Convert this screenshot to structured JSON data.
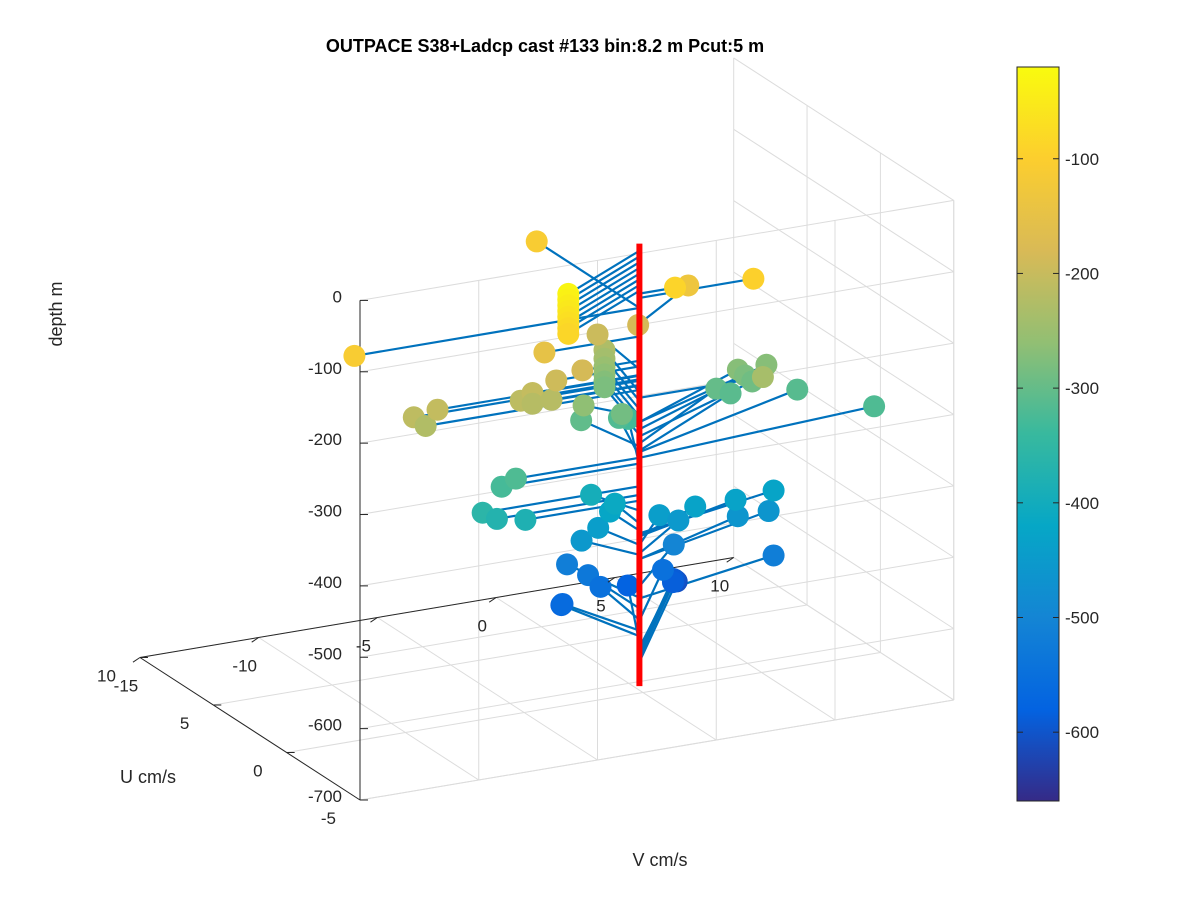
{
  "chart_data": {
    "type": "scatter",
    "title": "OUTPACE S38+Ladcp cast #133 bin:8.2 m  Pcut:5 m",
    "xlabel": "V cm/s",
    "ylabel": "U cm/s",
    "zlabel": "depth m",
    "xlim": [
      -15,
      10
    ],
    "ylim": [
      -5,
      10
    ],
    "zlim": [
      -700,
      0
    ],
    "xticks": [
      "-15",
      "-10",
      "-5",
      "0",
      "5",
      "10"
    ],
    "yticks": [
      "-5",
      "0",
      "5",
      "10"
    ],
    "zticks": [
      "0",
      "-100",
      "-200",
      "-300",
      "-400",
      "-500",
      "-600",
      "-700"
    ],
    "grid": true,
    "colorbar": {
      "ticks": [
        "-100",
        "-200",
        "-300",
        "-400",
        "-500",
        "-600"
      ],
      "range": [
        -660,
        -20
      ],
      "colormap": "parula"
    },
    "stick_origin": {
      "v": -2,
      "u": -3
    },
    "stick_color": "#0072BD",
    "axis_line_color": "#ff0000",
    "points": [
      {
        "v": -6.6,
        "u": -5.6,
        "d": -30
      },
      {
        "v": -6.6,
        "u": -5.6,
        "d": -38
      },
      {
        "v": -6.6,
        "u": -5.6,
        "d": -46
      },
      {
        "v": -6.6,
        "u": -5.6,
        "d": -54
      },
      {
        "v": -6.6,
        "u": -5.6,
        "d": -62
      },
      {
        "v": -6.6,
        "u": -5.6,
        "d": -70
      },
      {
        "v": -6.6,
        "u": -5.6,
        "d": -78
      },
      {
        "v": -6.6,
        "u": -5.6,
        "d": -86
      },
      {
        "v": -14.0,
        "u": -3.0,
        "d": -110
      },
      {
        "v": -0.5,
        "u": -3.0,
        "d": -90
      },
      {
        "v": -2.0,
        "u": 4.0,
        "d": -110
      },
      {
        "v": 2.8,
        "u": -3.0,
        "d": -96
      },
      {
        "v": 1.6,
        "u": -0.5,
        "d": -132
      },
      {
        "v": -6.0,
        "u": -3.0,
        "d": -150
      },
      {
        "v": -11.5,
        "u": -3.0,
        "d": -210
      },
      {
        "v": -10.5,
        "u": -3.0,
        "d": -205
      },
      {
        "v": -11.0,
        "u": -3.0,
        "d": -225
      },
      {
        "v": -6.5,
        "u": -3.0,
        "d": -204
      },
      {
        "v": -7.0,
        "u": -3.0,
        "d": -212
      },
      {
        "v": -6.5,
        "u": -3.0,
        "d": -219
      },
      {
        "v": -5.7,
        "u": -3.0,
        "d": -218
      },
      {
        "v": -5.5,
        "u": -3.0,
        "d": -192
      },
      {
        "v": -4.4,
        "u": -3.0,
        "d": -184
      },
      {
        "v": -1.6,
        "u": 0.5,
        "d": -196
      },
      {
        "v": -0.2,
        "u": 0.0,
        "d": -184
      },
      {
        "v": -1.0,
        "u": 1.0,
        "d": -228
      },
      {
        "v": -1.0,
        "u": 1.0,
        "d": -240
      },
      {
        "v": -1.0,
        "u": 1.0,
        "d": -252
      },
      {
        "v": -1.0,
        "u": 1.0,
        "d": -262
      },
      {
        "v": -1.0,
        "u": 1.0,
        "d": -272
      },
      {
        "v": -1.0,
        "u": 1.0,
        "d": -280
      },
      {
        "v": -3.3,
        "u": -1.3,
        "d": -262
      },
      {
        "v": -1.5,
        "u": -1.0,
        "d": -288
      },
      {
        "v": -2.6,
        "u": 0.0,
        "d": -304
      },
      {
        "v": -0.7,
        "u": 0.5,
        "d": -318
      },
      {
        "v": 3.2,
        "u": -3.0,
        "d": -236
      },
      {
        "v": 4.0,
        "u": 0.0,
        "d": -270
      },
      {
        "v": 4.3,
        "u": 0.0,
        "d": -280
      },
      {
        "v": 4.6,
        "u": 0.0,
        "d": -290
      },
      {
        "v": 5.2,
        "u": 0.0,
        "d": -270
      },
      {
        "v": 3.4,
        "u": 0.5,
        "d": -300
      },
      {
        "v": 4.0,
        "u": 0.5,
        "d": -310
      },
      {
        "v": 6.5,
        "u": 0.0,
        "d": -312
      },
      {
        "v": 8.5,
        "u": -2.0,
        "d": -320
      },
      {
        "v": 0.0,
        "u": 1.0,
        "d": -330
      },
      {
        "v": -7.8,
        "u": -3.0,
        "d": -328
      },
      {
        "v": -7.2,
        "u": -3.0,
        "d": -320
      },
      {
        "v": -8.6,
        "u": -3.0,
        "d": -360
      },
      {
        "v": -8.0,
        "u": -3.0,
        "d": -372
      },
      {
        "v": -6.8,
        "u": -3.0,
        "d": -380
      },
      {
        "v": -2.8,
        "u": -1.0,
        "d": -394
      },
      {
        "v": -1.8,
        "u": -1.0,
        "d": -412
      },
      {
        "v": -2.0,
        "u": -1.0,
        "d": -422
      },
      {
        "v": -2.5,
        "u": -1.0,
        "d": -442
      },
      {
        "v": -3.2,
        "u": -1.0,
        "d": -456
      },
      {
        "v": 1.4,
        "u": -1.3,
        "d": -430
      },
      {
        "v": 3.1,
        "u": -1.3,
        "d": -430
      },
      {
        "v": 4.7,
        "u": -1.3,
        "d": -426
      },
      {
        "v": 0.2,
        "u": -0.8,
        "d": -442
      },
      {
        "v": 1.0,
        "u": -0.8,
        "d": -454
      },
      {
        "v": 3.5,
        "u": -0.8,
        "d": -462
      },
      {
        "v": 4.8,
        "u": -0.8,
        "d": -462
      },
      {
        "v": 1.3,
        "u": 0.0,
        "d": -500
      },
      {
        "v": -2.7,
        "u": 0.8,
        "d": -516
      },
      {
        "v": -2.0,
        "u": 0.5,
        "d": -531
      },
      {
        "v": -1.6,
        "u": 0.3,
        "d": -547
      },
      {
        "v": -3.2,
        "u": 0.3,
        "d": -562
      },
      {
        "v": -3.0,
        "u": 0.7,
        "d": -570
      },
      {
        "v": 4.7,
        "u": -1.3,
        "d": -517
      },
      {
        "v": 1.4,
        "u": 0.9,
        "d": -548
      },
      {
        "v": 0.6,
        "u": 2.0,
        "d": -580
      },
      {
        "v": 2.5,
        "u": 2.0,
        "d": -586
      },
      {
        "v": 2.8,
        "u": 2.5,
        "d": -590
      },
      {
        "v": 3.0,
        "u": 2.8,
        "d": -595
      },
      {
        "v": 3.2,
        "u": 3.0,
        "d": -600
      },
      {
        "v": 3.4,
        "u": 3.2,
        "d": -606
      }
    ]
  }
}
